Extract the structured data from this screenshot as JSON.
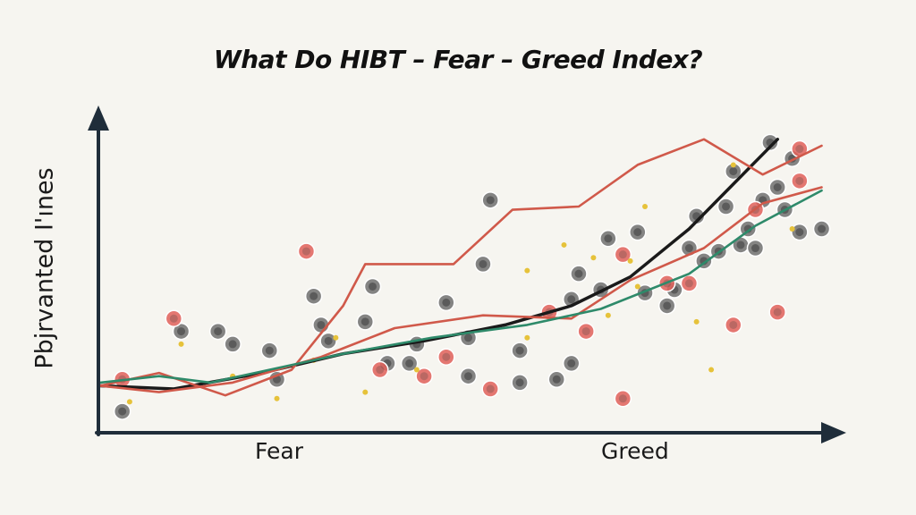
{
  "chart_data": {
    "type": "line",
    "title": "What Do HIBT – Fear – Greed Index?",
    "ylabel": "Pbjrvanted I'ınes",
    "xlabel": "",
    "x_tick_labels": [
      "Fear",
      "Greed"
    ],
    "xlim": [
      0,
      100
    ],
    "ylim": [
      0,
      100
    ],
    "grid": false,
    "legend": "none",
    "colors": {
      "axis": "#1f2d3a",
      "black": "#1a1a1a",
      "red": "#d0594a",
      "green": "#2e8a6a",
      "dot_gray": "#707070",
      "dot_red": "#e0605a",
      "dot_yellow": "#e6c23a"
    },
    "series": [
      {
        "color": "black",
        "points": [
          [
            0,
            13
          ],
          [
            10,
            12
          ],
          [
            22,
            17
          ],
          [
            33,
            23
          ],
          [
            44,
            27
          ],
          [
            55,
            32
          ],
          [
            64,
            38
          ],
          [
            72,
            47
          ],
          [
            80,
            62
          ],
          [
            86,
            76
          ],
          [
            92,
            90
          ]
        ]
      },
      {
        "color": "red",
        "points": [
          [
            0,
            13
          ],
          [
            8,
            17
          ],
          [
            17,
            10
          ],
          [
            26,
            18
          ],
          [
            33,
            38
          ],
          [
            36,
            51
          ],
          [
            48,
            51
          ],
          [
            56,
            68
          ],
          [
            65,
            69
          ],
          [
            73,
            82
          ],
          [
            82,
            90
          ],
          [
            90,
            79
          ],
          [
            98,
            88
          ]
        ]
      },
      {
        "color": "red",
        "points": [
          [
            0,
            13
          ],
          [
            8,
            11
          ],
          [
            18,
            14
          ],
          [
            30,
            22
          ],
          [
            40,
            31
          ],
          [
            52,
            35
          ],
          [
            64,
            34
          ],
          [
            72,
            46
          ],
          [
            82,
            56
          ],
          [
            90,
            70
          ],
          [
            98,
            75
          ]
        ]
      },
      {
        "color": "green",
        "points": [
          [
            0,
            14
          ],
          [
            8,
            16
          ],
          [
            15,
            14
          ],
          [
            25,
            19
          ],
          [
            33,
            23
          ],
          [
            45,
            28
          ],
          [
            58,
            32
          ],
          [
            68,
            37
          ],
          [
            80,
            48
          ],
          [
            89,
            63
          ],
          [
            98,
            74
          ]
        ]
      }
    ],
    "scatter": [
      {
        "color": "dot_gray",
        "points": [
          [
            3,
            5
          ],
          [
            11,
            30
          ],
          [
            16,
            30
          ],
          [
            18,
            26
          ],
          [
            23,
            24
          ],
          [
            24,
            15
          ],
          [
            29,
            41
          ],
          [
            30,
            32
          ],
          [
            31,
            27
          ],
          [
            36,
            33
          ],
          [
            37,
            44
          ],
          [
            39,
            20
          ],
          [
            42,
            20
          ],
          [
            43,
            26
          ],
          [
            47,
            39
          ],
          [
            50,
            28
          ],
          [
            50,
            16
          ],
          [
            52,
            51
          ],
          [
            53,
            71
          ],
          [
            57,
            24
          ],
          [
            57,
            14
          ],
          [
            62,
            15
          ],
          [
            64,
            20
          ],
          [
            64,
            40
          ],
          [
            65,
            48
          ],
          [
            68,
            43
          ],
          [
            69,
            59
          ],
          [
            73,
            61
          ],
          [
            74,
            42
          ],
          [
            77,
            38
          ],
          [
            78,
            43
          ],
          [
            80,
            56
          ],
          [
            81,
            66
          ],
          [
            82,
            52
          ],
          [
            84,
            55
          ],
          [
            85,
            69
          ],
          [
            86,
            80
          ],
          [
            87,
            57
          ],
          [
            88,
            62
          ],
          [
            89,
            56
          ],
          [
            90,
            71
          ],
          [
            91,
            89
          ],
          [
            92,
            75
          ],
          [
            93,
            68
          ],
          [
            94,
            84
          ],
          [
            95,
            61
          ],
          [
            98,
            62
          ]
        ]
      },
      {
        "color": "dot_red",
        "points": [
          [
            3,
            15
          ],
          [
            10,
            34
          ],
          [
            28,
            55
          ],
          [
            38,
            18
          ],
          [
            44,
            16
          ],
          [
            47,
            22
          ],
          [
            53,
            12
          ],
          [
            61,
            36
          ],
          [
            66,
            30
          ],
          [
            71,
            54
          ],
          [
            71,
            9
          ],
          [
            77,
            45
          ],
          [
            80,
            45
          ],
          [
            86,
            32
          ],
          [
            89,
            68
          ],
          [
            92,
            36
          ],
          [
            95,
            87
          ],
          [
            95,
            77
          ]
        ]
      },
      {
        "color": "dot_yellow",
        "points": [
          [
            4,
            8
          ],
          [
            11,
            26
          ],
          [
            18,
            16
          ],
          [
            24,
            9
          ],
          [
            29,
            21
          ],
          [
            32,
            28
          ],
          [
            36,
            11
          ],
          [
            43,
            18
          ],
          [
            58,
            28
          ],
          [
            58,
            49
          ],
          [
            63,
            57
          ],
          [
            67,
            53
          ],
          [
            69,
            35
          ],
          [
            72,
            52
          ],
          [
            73,
            44
          ],
          [
            74,
            69
          ],
          [
            81,
            33
          ],
          [
            83,
            18
          ],
          [
            86,
            82
          ],
          [
            94,
            62
          ]
        ]
      }
    ]
  }
}
